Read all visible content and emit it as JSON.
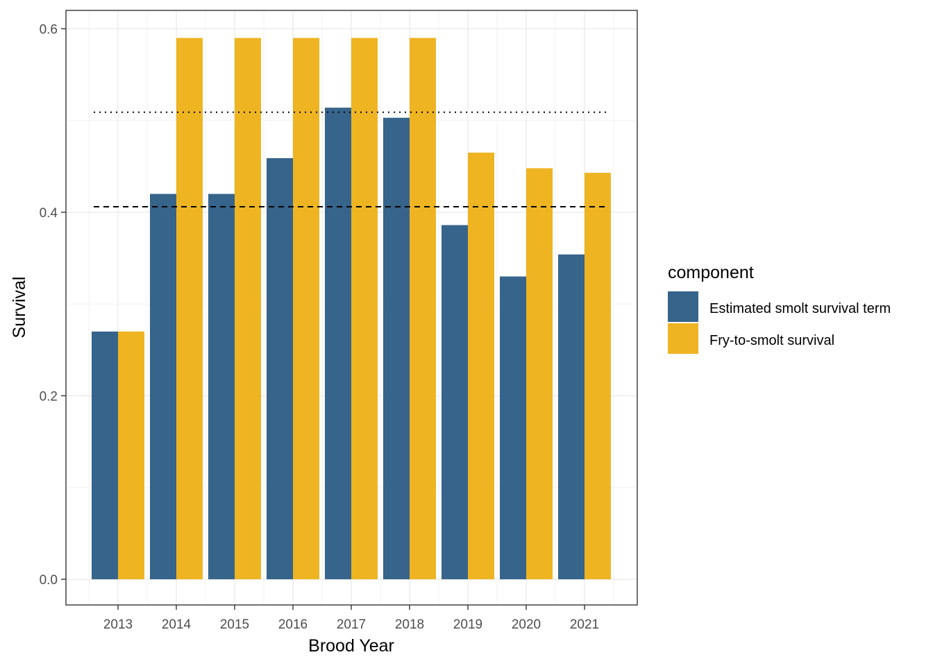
{
  "chart_data": {
    "type": "bar",
    "xlabel": "Brood Year",
    "ylabel": "Survival",
    "categories": [
      "2013",
      "2014",
      "2015",
      "2016",
      "2017",
      "2018",
      "2019",
      "2020",
      "2021"
    ],
    "series": [
      {
        "name": "Estimated smolt survival term",
        "color": "#36648b",
        "values": [
          0.27,
          0.42,
          0.42,
          0.459,
          0.514,
          0.503,
          0.386,
          0.33,
          0.354
        ]
      },
      {
        "name": "Fry-to-smolt survival",
        "color": "#eeb422",
        "values": [
          0.27,
          0.59,
          0.59,
          0.59,
          0.59,
          0.59,
          0.465,
          0.448,
          0.443
        ]
      }
    ],
    "reference_lines": [
      {
        "style": "dotted",
        "value": 0.509
      },
      {
        "style": "dashed",
        "value": 0.406
      }
    ],
    "ylim": [
      -0.028,
      0.62
    ],
    "yticks": [
      0.0,
      0.2,
      0.4,
      0.6
    ],
    "ytick_labels": [
      "0.0",
      "0.2",
      "0.4",
      "0.6"
    ],
    "grid": true,
    "legend": {
      "title": "component",
      "placement": "right"
    }
  }
}
